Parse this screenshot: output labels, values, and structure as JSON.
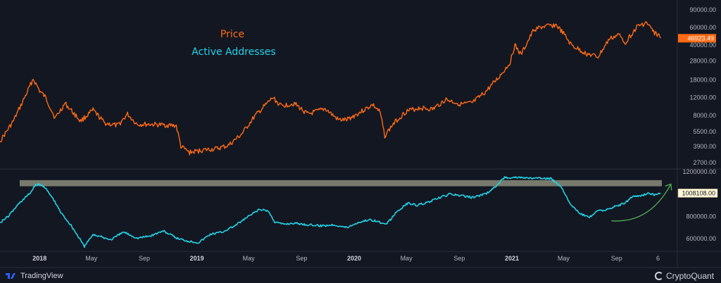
{
  "chart_data": {
    "type": "line",
    "title": "",
    "legend": [
      "Price",
      "Active Addresses"
    ],
    "legend_placement": "top-center",
    "grid": false,
    "x_tick_labels": [
      "2018",
      "May",
      "Sep",
      "2019",
      "May",
      "Sep",
      "2020",
      "May",
      "Sep",
      "2021",
      "May",
      "Sep",
      "6"
    ],
    "panels": [
      {
        "name": "Price",
        "scale": "log",
        "ylim": [
          2400,
          92000
        ],
        "y_tick_labels": [
          "90000.00",
          "60000.00",
          "40000.00",
          "28000.00",
          "18000.00",
          "12000.00",
          "8000.00",
          "5500.00",
          "3900.00",
          "2700.00"
        ],
        "last_value_label": "46923.49",
        "color": "#ff6a13",
        "x": [
          "2017-10-01",
          "2017-11-01",
          "2017-12-01",
          "2017-12-17",
          "2018-01-01",
          "2018-01-15",
          "2018-02-06",
          "2018-03-01",
          "2018-04-06",
          "2018-05-05",
          "2018-06-01",
          "2018-07-01",
          "2018-07-24",
          "2018-08-15",
          "2018-09-15",
          "2018-10-15",
          "2018-11-14",
          "2018-11-25",
          "2018-12-15",
          "2019-01-15",
          "2019-02-15",
          "2019-03-15",
          "2019-04-15",
          "2019-05-15",
          "2019-06-26",
          "2019-07-15",
          "2019-08-15",
          "2019-09-15",
          "2019-10-26",
          "2019-11-25",
          "2019-12-15",
          "2020-01-15",
          "2020-02-13",
          "2020-03-01",
          "2020-03-12",
          "2020-04-01",
          "2020-05-01",
          "2020-06-01",
          "2020-07-01",
          "2020-08-01",
          "2020-09-05",
          "2020-10-01",
          "2020-11-01",
          "2020-12-01",
          "2020-12-27",
          "2021-01-08",
          "2021-01-22",
          "2021-02-21",
          "2021-03-13",
          "2021-04-14",
          "2021-05-01",
          "2021-05-19",
          "2021-06-22",
          "2021-07-20",
          "2021-08-15",
          "2021-09-06",
          "2021-09-21",
          "2021-10-20",
          "2021-11-10",
          "2021-11-26",
          "2021-12-08",
          "2021-12-12"
        ],
        "y": [
          4400,
          7000,
          13000,
          18500,
          14000,
          12000,
          7500,
          10500,
          7000,
          9000,
          6700,
          6300,
          8200,
          6500,
          6500,
          6400,
          6300,
          3900,
          3400,
          3600,
          3700,
          4000,
          5200,
          7800,
          12000,
          9900,
          10500,
          8200,
          9300,
          7200,
          7200,
          8600,
          10200,
          8600,
          5000,
          6600,
          8800,
          9500,
          9200,
          11500,
          10300,
          10600,
          13700,
          19000,
          26500,
          40000,
          32000,
          57000,
          61000,
          63500,
          52000,
          40000,
          33000,
          30500,
          46000,
          51000,
          42500,
          62000,
          67000,
          54000,
          50000,
          46923.49
        ]
      },
      {
        "name": "Active Addresses",
        "scale": "linear",
        "ylim": [
          480000,
          1200000
        ],
        "y_tick_labels": [
          "1200000.00",
          "1000000.00",
          "800000.00",
          "600000.00"
        ],
        "last_value_label": "1008108.00",
        "color": "#22d3e6",
        "x": [
          "2017-10-01",
          "2017-10-20",
          "2017-11-15",
          "2017-12-10",
          "2017-12-25",
          "2018-01-10",
          "2018-02-01",
          "2018-02-20",
          "2018-03-15",
          "2018-04-15",
          "2018-05-05",
          "2018-05-20",
          "2018-06-15",
          "2018-07-15",
          "2018-08-15",
          "2018-09-15",
          "2018-10-15",
          "2018-11-15",
          "2018-12-10",
          "2019-01-05",
          "2019-02-01",
          "2019-03-01",
          "2019-04-01",
          "2019-05-01",
          "2019-05-25",
          "2019-06-15",
          "2019-07-01",
          "2019-07-20",
          "2019-08-15",
          "2019-09-15",
          "2019-10-15",
          "2019-11-15",
          "2019-12-15",
          "2020-01-10",
          "2020-02-05",
          "2020-02-20",
          "2020-03-15",
          "2020-04-10",
          "2020-05-05",
          "2020-05-25",
          "2020-06-20",
          "2020-07-20",
          "2020-08-10",
          "2020-09-05",
          "2020-10-01",
          "2020-11-01",
          "2020-11-25",
          "2020-12-15",
          "2021-01-10",
          "2021-02-05",
          "2021-03-01",
          "2021-04-01",
          "2021-04-25",
          "2021-05-20",
          "2021-06-10",
          "2021-06-30",
          "2021-07-20",
          "2021-08-10",
          "2021-09-01",
          "2021-09-20",
          "2021-10-10",
          "2021-10-25",
          "2021-11-15",
          "2021-12-01",
          "2021-12-12"
        ],
        "y": [
          745000,
          800000,
          920000,
          1010000,
          1090000,
          1075000,
          960000,
          830000,
          720000,
          530000,
          640000,
          620000,
          590000,
          660000,
          605000,
          625000,
          670000,
          605000,
          580000,
          565000,
          640000,
          660000,
          720000,
          800000,
          860000,
          850000,
          750000,
          730000,
          740000,
          725000,
          715000,
          725000,
          700000,
          745000,
          770000,
          760000,
          725000,
          845000,
          920000,
          900000,
          925000,
          970000,
          1000000,
          985000,
          970000,
          1000000,
          1070000,
          1150000,
          1150000,
          1145000,
          1140000,
          1140000,
          1070000,
          890000,
          820000,
          790000,
          850000,
          860000,
          895000,
          920000,
          985000,
          980000,
          1010000,
          990000,
          1008108
        ]
      }
    ],
    "annotations": [
      "Highlighted horizontal band ~1,070,000–1,125,000 (previous peak zone)",
      "Green upward arrow after Sep 2021"
    ]
  },
  "footer": {
    "left_logo": "TradingView",
    "right_logo": "CryptoQuant"
  },
  "colors": {
    "background": "#131722",
    "price": "#ff6a13",
    "active_addresses": "#22d3e6",
    "band": "#9a9c86",
    "arrow": "#4caf50",
    "axis_text": "#b2b5be"
  }
}
